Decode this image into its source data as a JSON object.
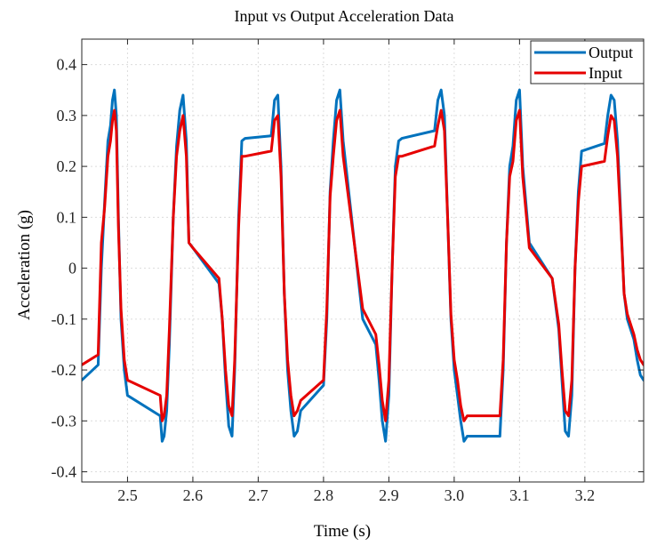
{
  "chart_data": {
    "type": "line",
    "title": "Input vs Output Acceleration Data",
    "xlabel": "Time (s)",
    "ylabel": "Acceleration (g)",
    "xlim": [
      2.43,
      3.29
    ],
    "ylim": [
      -0.42,
      0.45
    ],
    "xticks": [
      2.5,
      2.6,
      2.7,
      2.8,
      2.9,
      3.0,
      3.1,
      3.2
    ],
    "xtick_labels": [
      "2.5",
      "2.6",
      "2.7",
      "2.8",
      "2.9",
      "3.0",
      "3.1",
      "3.2"
    ],
    "yticks": [
      -0.4,
      -0.3,
      -0.2,
      -0.1,
      0,
      0.1,
      0.2,
      0.3,
      0.4
    ],
    "ytick_labels": [
      "-0.4",
      "-0.3",
      "-0.2",
      "-0.1",
      "0",
      "0.1",
      "0.2",
      "0.3",
      "0.4"
    ],
    "grid": true,
    "legend_position": "top-right",
    "series": [
      {
        "name": "Output",
        "color": "#0072BD",
        "x": [
          2.43,
          2.455,
          2.46,
          2.465,
          2.47,
          2.474,
          2.477,
          2.48,
          2.483,
          2.486,
          2.49,
          2.495,
          2.5,
          2.55,
          2.553,
          2.556,
          2.56,
          2.564,
          2.57,
          2.575,
          2.58,
          2.585,
          2.59,
          2.594,
          2.6,
          2.64,
          2.645,
          2.65,
          2.655,
          2.66,
          2.664,
          2.67,
          2.675,
          2.68,
          2.72,
          2.725,
          2.73,
          2.735,
          2.74,
          2.745,
          2.75,
          2.755,
          2.76,
          2.765,
          2.8,
          2.805,
          2.81,
          2.815,
          2.82,
          2.825,
          2.83,
          2.86,
          2.88,
          2.885,
          2.89,
          2.895,
          2.9,
          2.905,
          2.91,
          2.915,
          2.92,
          2.97,
          2.975,
          2.98,
          2.985,
          2.99,
          2.995,
          3.0,
          3.005,
          3.01,
          3.015,
          3.02,
          3.07,
          3.075,
          3.08,
          3.085,
          3.09,
          3.095,
          3.1,
          3.105,
          3.115,
          3.15,
          3.16,
          3.165,
          3.17,
          3.175,
          3.18,
          3.185,
          3.19,
          3.195,
          3.23,
          3.235,
          3.24,
          3.245,
          3.25,
          3.255,
          3.26,
          3.265,
          3.27,
          3.275,
          3.28,
          3.285,
          3.29
        ],
        "y": [
          -0.22,
          -0.19,
          0.0,
          0.13,
          0.25,
          0.28,
          0.33,
          0.35,
          0.3,
          0.1,
          -0.1,
          -0.2,
          -0.25,
          -0.29,
          -0.34,
          -0.33,
          -0.28,
          -0.15,
          0.1,
          0.24,
          0.31,
          0.34,
          0.25,
          0.05,
          0.04,
          -0.03,
          -0.1,
          -0.22,
          -0.31,
          -0.33,
          -0.2,
          0.1,
          0.25,
          0.255,
          0.26,
          0.33,
          0.34,
          0.2,
          -0.05,
          -0.2,
          -0.28,
          -0.33,
          -0.32,
          -0.28,
          -0.23,
          -0.1,
          0.15,
          0.25,
          0.33,
          0.35,
          0.25,
          -0.1,
          -0.15,
          -0.22,
          -0.3,
          -0.34,
          -0.25,
          0.0,
          0.2,
          0.25,
          0.255,
          0.27,
          0.33,
          0.35,
          0.3,
          0.1,
          -0.1,
          -0.2,
          -0.25,
          -0.3,
          -0.34,
          -0.33,
          -0.33,
          -0.2,
          0.05,
          0.2,
          0.24,
          0.33,
          0.35,
          0.2,
          0.05,
          -0.02,
          -0.12,
          -0.22,
          -0.32,
          -0.33,
          -0.25,
          0.0,
          0.15,
          0.23,
          0.245,
          0.3,
          0.34,
          0.33,
          0.25,
          0.1,
          -0.05,
          -0.1,
          -0.12,
          -0.14,
          -0.18,
          -0.21,
          -0.22
        ]
      },
      {
        "name": "Input",
        "color": "#E60000",
        "x": [
          2.43,
          2.455,
          2.46,
          2.465,
          2.47,
          2.474,
          2.477,
          2.48,
          2.483,
          2.486,
          2.49,
          2.495,
          2.5,
          2.55,
          2.553,
          2.556,
          2.56,
          2.564,
          2.57,
          2.575,
          2.58,
          2.585,
          2.59,
          2.594,
          2.6,
          2.64,
          2.645,
          2.65,
          2.655,
          2.66,
          2.664,
          2.67,
          2.675,
          2.68,
          2.72,
          2.725,
          2.73,
          2.735,
          2.74,
          2.745,
          2.75,
          2.755,
          2.76,
          2.765,
          2.8,
          2.805,
          2.81,
          2.815,
          2.82,
          2.825,
          2.83,
          2.86,
          2.88,
          2.885,
          2.89,
          2.895,
          2.9,
          2.905,
          2.91,
          2.915,
          2.92,
          2.97,
          2.975,
          2.98,
          2.985,
          2.99,
          2.995,
          3.0,
          3.005,
          3.01,
          3.015,
          3.02,
          3.07,
          3.075,
          3.08,
          3.085,
          3.09,
          3.095,
          3.1,
          3.105,
          3.115,
          3.15,
          3.16,
          3.165,
          3.17,
          3.175,
          3.18,
          3.185,
          3.19,
          3.195,
          3.23,
          3.235,
          3.24,
          3.245,
          3.25,
          3.255,
          3.26,
          3.265,
          3.27,
          3.275,
          3.28,
          3.285,
          3.29
        ],
        "y": [
          -0.19,
          -0.17,
          0.05,
          0.12,
          0.22,
          0.25,
          0.29,
          0.31,
          0.27,
          0.08,
          -0.08,
          -0.18,
          -0.22,
          -0.25,
          -0.3,
          -0.29,
          -0.25,
          -0.12,
          0.1,
          0.22,
          0.27,
          0.3,
          0.22,
          0.05,
          0.04,
          -0.02,
          -0.1,
          -0.2,
          -0.27,
          -0.29,
          -0.18,
          0.08,
          0.22,
          0.22,
          0.23,
          0.29,
          0.3,
          0.18,
          -0.05,
          -0.18,
          -0.25,
          -0.29,
          -0.28,
          -0.26,
          -0.22,
          -0.08,
          0.14,
          0.22,
          0.29,
          0.31,
          0.22,
          -0.08,
          -0.13,
          -0.19,
          -0.26,
          -0.3,
          -0.22,
          0.0,
          0.18,
          0.22,
          0.22,
          0.24,
          0.28,
          0.31,
          0.27,
          0.1,
          -0.09,
          -0.18,
          -0.22,
          -0.27,
          -0.3,
          -0.29,
          -0.29,
          -0.18,
          0.05,
          0.18,
          0.21,
          0.29,
          0.31,
          0.18,
          0.04,
          -0.02,
          -0.11,
          -0.2,
          -0.28,
          -0.29,
          -0.22,
          0.0,
          0.13,
          0.2,
          0.21,
          0.26,
          0.3,
          0.29,
          0.22,
          0.09,
          -0.05,
          -0.09,
          -0.11,
          -0.13,
          -0.16,
          -0.18,
          -0.19
        ]
      }
    ]
  }
}
